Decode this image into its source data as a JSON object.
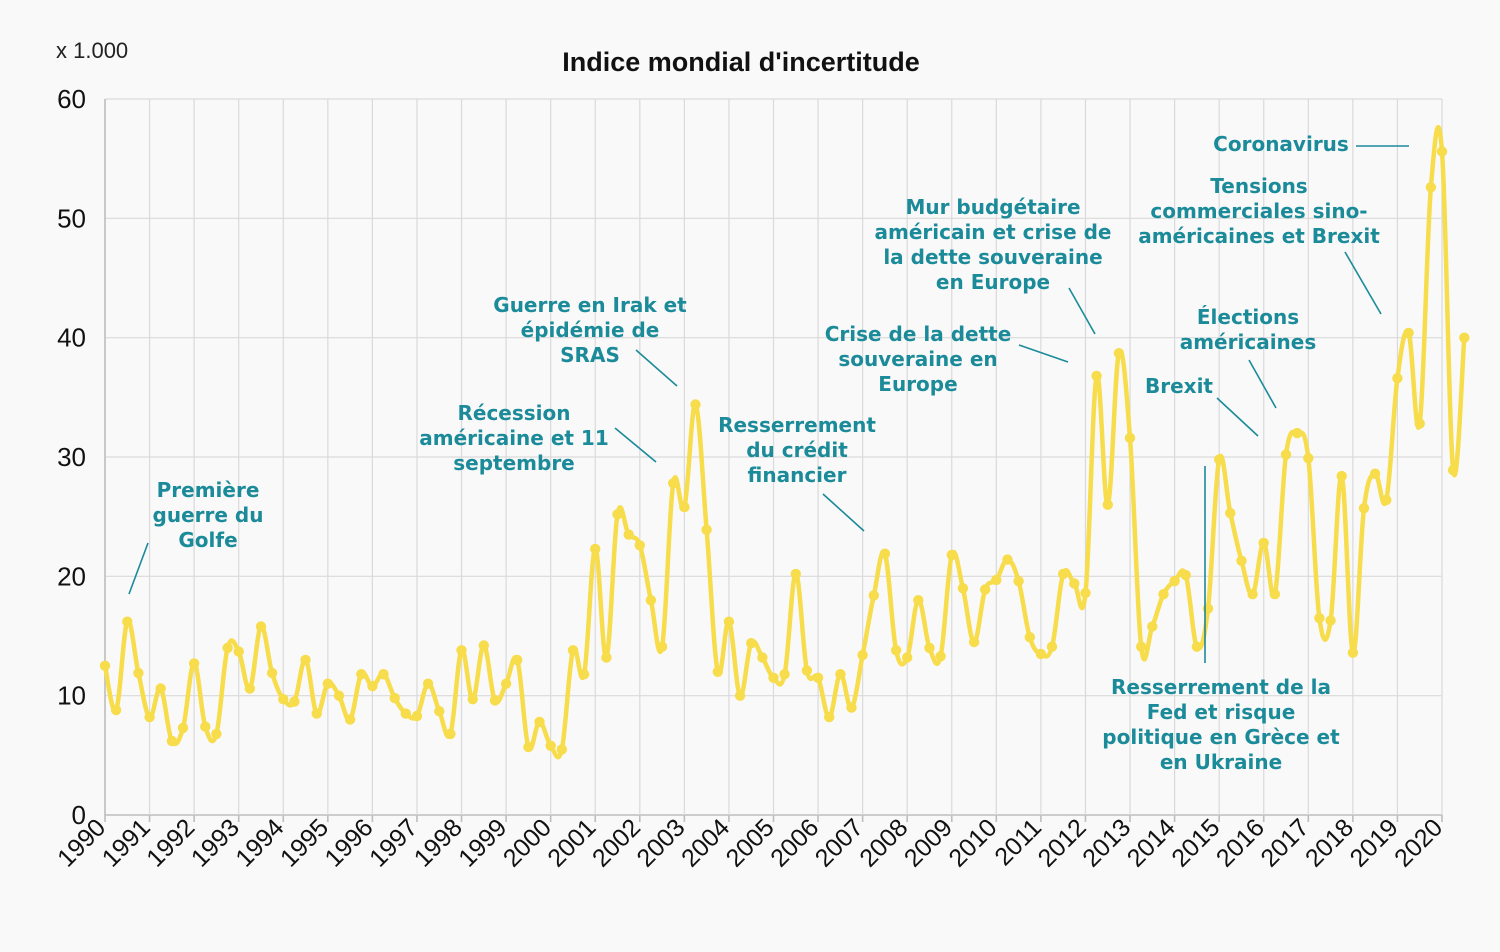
{
  "colors": {
    "background": "#f9f9fa",
    "series": "#f7dc4b",
    "annotation": "#1b8a99",
    "grid": "#dadada",
    "text": "#111111"
  },
  "chart_data": {
    "type": "line",
    "title": "Indice mondial d'incertitude",
    "unit_label": "x 1.000",
    "xlabel": "",
    "ylabel": "",
    "ylim": [
      0,
      60
    ],
    "yticks": [
      "0",
      "10",
      "20",
      "30",
      "40",
      "50",
      "60"
    ],
    "xticks": [
      "1990",
      "1991",
      "1992",
      "1993",
      "1994",
      "1995",
      "1996",
      "1997",
      "1998",
      "1999",
      "2000",
      "2001",
      "2002",
      "2003",
      "2004",
      "2005",
      "2006",
      "2007",
      "2008",
      "2009",
      "2010",
      "2011",
      "2012",
      "2013",
      "2014",
      "2015",
      "2016",
      "2017",
      "2018",
      "2019",
      "2020"
    ],
    "grid": true,
    "legend": "none",
    "series": [
      {
        "x_start": 1990,
        "step": 0.25,
        "values": [
          12.5,
          8.8,
          16.2,
          11.9,
          8.2,
          10.6,
          6.2,
          7.3,
          12.7,
          7.4,
          6.8,
          14.0,
          13.7,
          10.6,
          15.8,
          11.9,
          9.7,
          9.5,
          13.0,
          8.5,
          11.0,
          10.0,
          8.0,
          11.8,
          10.8,
          11.8,
          9.8,
          8.5,
          8.3,
          11.0,
          8.7,
          6.8,
          13.8,
          9.7,
          14.2,
          9.6,
          11.0,
          13.0,
          5.7,
          7.8,
          5.8,
          5.5,
          13.8,
          11.8,
          22.3,
          13.2,
          25.2,
          23.5,
          22.6,
          18.0,
          14.1,
          27.8,
          25.8,
          34.4,
          23.9,
          12.0,
          16.2,
          10.0,
          14.4,
          13.2,
          11.5,
          11.8,
          20.2,
          12.1,
          11.5,
          8.2,
          11.8,
          9.0,
          13.4,
          18.4,
          21.9,
          13.8,
          13.2,
          18.0,
          14.0,
          13.3,
          21.8,
          19.0,
          14.5,
          18.9,
          19.7,
          21.4,
          19.6,
          14.9,
          13.5,
          14.1,
          20.2,
          19.4,
          18.6,
          36.8,
          26.0,
          38.7,
          31.6,
          14.1,
          15.8,
          18.5,
          19.6,
          20.1,
          14.1,
          17.3,
          29.8,
          25.3,
          21.3,
          18.5,
          22.8,
          18.5,
          30.2,
          32.0,
          29.9,
          16.5,
          16.3,
          28.4,
          13.6,
          25.7,
          28.6,
          26.4,
          36.6,
          40.4,
          32.8,
          52.6,
          55.6,
          28.9,
          40.0
        ]
      }
    ],
    "annotations": [
      {
        "id": "golfe",
        "lines": [
          "Première",
          "guerre du",
          "Golfe"
        ]
      },
      {
        "id": "recession",
        "lines": [
          "Récession",
          "américaine et 11",
          "septembre"
        ]
      },
      {
        "id": "irak",
        "lines": [
          "Guerre en Irak et",
          "épidémie de",
          "SRAS"
        ]
      },
      {
        "id": "credit",
        "lines": [
          "Resserrement",
          "du crédit",
          "financier"
        ]
      },
      {
        "id": "crise",
        "lines": [
          "Crise de la dette",
          "souveraine en",
          "Europe"
        ]
      },
      {
        "id": "mur",
        "lines": [
          "Mur budgétaire",
          "américain et crise de",
          "la dette souveraine",
          "en Europe"
        ]
      },
      {
        "id": "fed",
        "lines": [
          "Resserrement de la",
          "Fed et risque",
          "politique en Grèce et",
          "en Ukraine"
        ]
      },
      {
        "id": "brexit",
        "lines": [
          "Brexit"
        ]
      },
      {
        "id": "elections",
        "lines": [
          "Élections",
          "américaines"
        ]
      },
      {
        "id": "tensions",
        "lines": [
          "Tensions",
          "commerciales sino-",
          "américaines et Brexit"
        ]
      },
      {
        "id": "corona",
        "lines": [
          "Coronavirus"
        ]
      }
    ]
  }
}
